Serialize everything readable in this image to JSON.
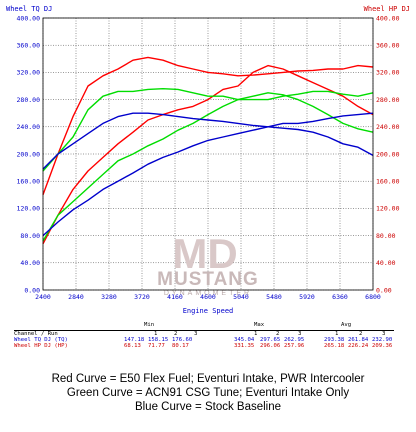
{
  "chart_data": {
    "type": "line",
    "title": "",
    "xlabel": "Engine Speed",
    "ylabel_left": "Wheel TQ DJ",
    "ylabel_right": "Wheel HP DJ",
    "xlim": [
      2400,
      6800
    ],
    "ylim_left": [
      0,
      400
    ],
    "ylim_right": [
      0,
      400
    ],
    "grid": true,
    "x_ticks": [
      "2400",
      "2840",
      "3280",
      "3720",
      "4160",
      "4600",
      "5040",
      "5480",
      "5920",
      "6360",
      "6800"
    ],
    "y_ticks_left": [
      "0.00",
      "40.00",
      "80.00",
      "120.00",
      "160.00",
      "200.00",
      "240.00",
      "280.00",
      "320.00",
      "360.00",
      "400.00"
    ],
    "y_ticks_right": [
      "0.00",
      "40.00",
      "80.00",
      "120.00",
      "160.00",
      "200.00",
      "240.00",
      "280.00",
      "320.00",
      "360.00",
      "400.00"
    ],
    "series": [
      {
        "name": "Red torque",
        "color": "#ff0000",
        "axis": "left",
        "kind": "tq",
        "x": [
          2400,
          2600,
          2800,
          3000,
          3200,
          3400,
          3600,
          3800,
          4000,
          4200,
          4400,
          4600,
          4800,
          5000,
          5200,
          5400,
          5600,
          5800,
          6000,
          6200,
          6400,
          6600,
          6800
        ],
        "y": [
          140,
          200,
          255,
          300,
          315,
          325,
          338,
          342,
          338,
          330,
          325,
          320,
          318,
          315,
          316,
          318,
          320,
          322,
          323,
          325,
          325,
          330,
          328
        ]
      },
      {
        "name": "Red horsepower",
        "color": "#ff0000",
        "axis": "right",
        "kind": "hp",
        "x": [
          2400,
          2600,
          2800,
          3000,
          3200,
          3400,
          3600,
          3800,
          4000,
          4200,
          4400,
          4600,
          4800,
          5000,
          5200,
          5400,
          5600,
          5800,
          6000,
          6200,
          6400,
          6600,
          6800
        ],
        "y": [
          68,
          110,
          148,
          175,
          195,
          215,
          232,
          250,
          258,
          265,
          270,
          280,
          295,
          300,
          320,
          330,
          325,
          315,
          305,
          295,
          285,
          270,
          258
        ]
      },
      {
        "name": "Green torque",
        "color": "#00dd00",
        "axis": "left",
        "kind": "tq",
        "x": [
          2400,
          2600,
          2800,
          3000,
          3200,
          3400,
          3600,
          3800,
          4000,
          4200,
          4400,
          4600,
          4800,
          5000,
          5200,
          5400,
          5600,
          5800,
          6000,
          6200,
          6400,
          6600,
          6800
        ],
        "y": [
          175,
          200,
          225,
          265,
          285,
          292,
          292,
          295,
          296,
          295,
          290,
          285,
          285,
          280,
          280,
          280,
          285,
          288,
          292,
          292,
          288,
          285,
          290
        ]
      },
      {
        "name": "Green horsepower",
        "color": "#00dd00",
        "axis": "right",
        "kind": "hp",
        "x": [
          2400,
          2600,
          2800,
          3000,
          3200,
          3400,
          3600,
          3800,
          4000,
          4200,
          4400,
          4600,
          4800,
          5000,
          5200,
          5400,
          5600,
          5800,
          6000,
          6200,
          6400,
          6600,
          6800
        ],
        "y": [
          72,
          110,
          130,
          150,
          170,
          190,
          200,
          212,
          222,
          235,
          245,
          258,
          270,
          280,
          285,
          290,
          287,
          280,
          270,
          258,
          245,
          237,
          232
        ]
      },
      {
        "name": "Blue torque",
        "color": "#0000cc",
        "axis": "left",
        "kind": "tq",
        "x": [
          2400,
          2600,
          2800,
          3000,
          3200,
          3400,
          3600,
          3800,
          4000,
          4200,
          4400,
          4600,
          4800,
          5000,
          5200,
          5400,
          5600,
          5800,
          6000,
          6200,
          6400,
          6600,
          6800
        ],
        "y": [
          178,
          200,
          215,
          230,
          245,
          255,
          260,
          260,
          258,
          255,
          252,
          250,
          248,
          245,
          242,
          240,
          238,
          236,
          232,
          225,
          215,
          210,
          198
        ]
      },
      {
        "name": "Blue horsepower",
        "color": "#0000cc",
        "axis": "right",
        "kind": "hp",
        "x": [
          2400,
          2600,
          2800,
          3000,
          3200,
          3400,
          3600,
          3800,
          4000,
          4200,
          4400,
          4600,
          4800,
          5000,
          5200,
          5400,
          5600,
          5800,
          6000,
          6200,
          6400,
          6600,
          6800
        ],
        "y": [
          80,
          100,
          118,
          132,
          148,
          160,
          172,
          185,
          195,
          203,
          212,
          220,
          225,
          230,
          235,
          240,
          245,
          245,
          248,
          252,
          256,
          258,
          260
        ]
      }
    ]
  },
  "stats": {
    "header": {
      "min": "Min",
      "max": "Max",
      "avg": "Avg"
    },
    "label_header": "Channel / Run",
    "run_numbers": [
      "1",
      "2",
      "3",
      "1",
      "2",
      "3",
      "1",
      "2",
      "3"
    ],
    "rows": [
      {
        "label": "Wheel TQ DJ (TQ)",
        "color": "#0000cc",
        "values": [
          "147.18",
          "158.15",
          "176.60",
          "345.04",
          "297.65",
          "262.95",
          "293.38",
          "261.84",
          "232.90"
        ]
      },
      {
        "label": "Wheel HP DJ (HP)",
        "color": "#cc0000",
        "values": [
          "68.13",
          "71.77",
          "80.17",
          "331.35",
          "296.06",
          "257.96",
          "265.18",
          "226.24",
          "209.36"
        ]
      }
    ]
  },
  "watermark": {
    "logo": "MD",
    "name": "MUSTANG",
    "sub": "DYNAMOMETER"
  },
  "captions": [
    "Red Curve = E50 Flex Fuel; Eventuri Intake, PWR Intercooler",
    "Green Curve = ACN91 CSG Tune; Eventuri Intake Only",
    "Blue Curve = Stock Baseline"
  ]
}
